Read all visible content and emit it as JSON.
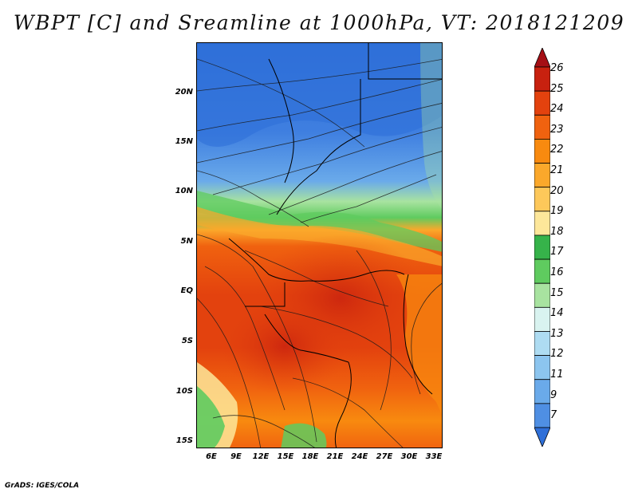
{
  "header": {
    "title": "WBPT [C] and Sreamline at 1000hPa, VT: 2018121209"
  },
  "lat_labels": [
    "20N",
    "15N",
    "10N",
    "5N",
    "EQ",
    "5S",
    "10S",
    "15S"
  ],
  "lon_labels": [
    "6E",
    "9E",
    "12E",
    "15E",
    "18E",
    "21E",
    "24E",
    "27E",
    "30E",
    "33E"
  ],
  "colorbar": {
    "labels": [
      "26",
      "25",
      "24",
      "23",
      "22",
      "21",
      "20",
      "19",
      "18",
      "17",
      "16",
      "15",
      "14",
      "13",
      "12",
      "11",
      "9",
      "7"
    ],
    "colors": [
      "#a50f15",
      "#c8210f",
      "#e3420e",
      "#f0620f",
      "#f88a0f",
      "#fba82b",
      "#fdc85a",
      "#fde79a",
      "#36b34a",
      "#5fcb5f",
      "#a8e3a0",
      "#d9f3f0",
      "#aedcf2",
      "#8cc5ef",
      "#6aaaea",
      "#4f8fe3",
      "#2f6fd8"
    ]
  },
  "footer": {
    "credit": "GrADS: IGES/COLA"
  }
}
